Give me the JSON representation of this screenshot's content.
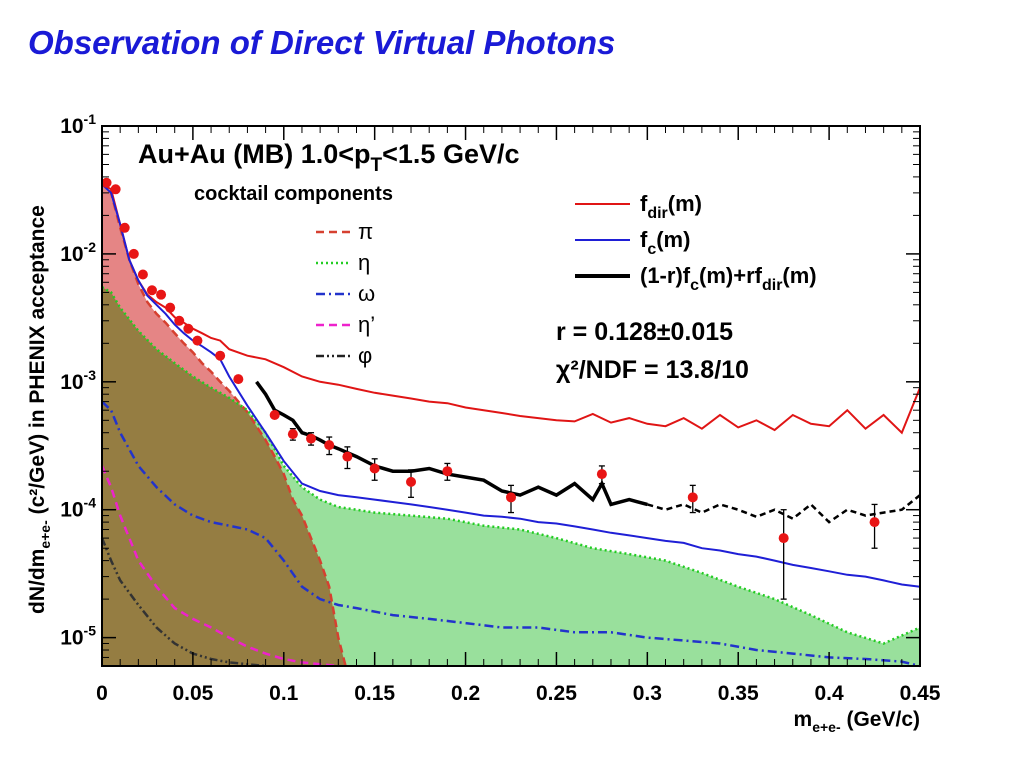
{
  "slide": {
    "title": "Observation of Direct Virtual Photons"
  },
  "chart_data": {
    "type": "line",
    "plot_title": "Au+Au (MB) 1.0<p",
    "plot_title_sub": "T",
    "plot_title_tail": "<1.5 GeV/c",
    "subtitle": "cocktail components",
    "xlabel_main": "m",
    "xlabel_sub": "e+e-",
    "xlabel_tail": " (GeV/c)",
    "ylabel_head": "dN/dm",
    "ylabel_sub": "e+e-",
    "ylabel_tail": " (c²/GeV) in PHENIX acceptance",
    "xlim": [
      0,
      0.45
    ],
    "ylim": [
      6e-06,
      0.1
    ],
    "log_y": true,
    "x_ticks": [
      "0",
      "0.05",
      "0.1",
      "0.15",
      "0.2",
      "0.25",
      "0.3",
      "0.35",
      "0.4",
      "0.45"
    ],
    "y_ticks": [
      {
        "base": "10",
        "exp": "-1",
        "value": 0.1
      },
      {
        "base": "10",
        "exp": "-2",
        "value": 0.01
      },
      {
        "base": "10",
        "exp": "-3",
        "value": 0.001
      },
      {
        "base": "10",
        "exp": "-4",
        "value": 0.0001
      },
      {
        "base": "10",
        "exp": "-5",
        "value": 1e-05
      }
    ],
    "fit_result": "r = 0.128±0.015",
    "chi2": "χ²/NDF = 13.8/10",
    "legend_right": [
      {
        "label": "f",
        "sub": "dir",
        "tail": "(m)",
        "color": "#e01515"
      },
      {
        "label": "f",
        "sub": "c",
        "tail": "(m)",
        "color": "#1f1fd6"
      },
      {
        "label": "(1-r)f",
        "sub": "c",
        "tail": "(m)+rf",
        "sub2": "dir",
        "tail2": "(m)",
        "color": "#000000"
      }
    ],
    "legend_components": [
      {
        "label": "π",
        "color": "#d64030",
        "dash": "dashed"
      },
      {
        "label": "η",
        "color": "#22cc22",
        "dash": "dotted"
      },
      {
        "label": "ω",
        "color": "#2233cc",
        "dash": "dashdot"
      },
      {
        "label": "η’",
        "color": "#ee22cc",
        "dash": "dashed"
      },
      {
        "label": "φ",
        "color": "#222222",
        "dash": "dashdotdot"
      }
    ],
    "series": [
      {
        "key": "f_dir",
        "color": "#e01515",
        "x": [
          0.0,
          0.005,
          0.01,
          0.015,
          0.02,
          0.025,
          0.03,
          0.035,
          0.04,
          0.045,
          0.05,
          0.055,
          0.06,
          0.065,
          0.07,
          0.08,
          0.09,
          0.1,
          0.11,
          0.12,
          0.13,
          0.14,
          0.15,
          0.16,
          0.17,
          0.18,
          0.19,
          0.2,
          0.21,
          0.22,
          0.23,
          0.24,
          0.25,
          0.26,
          0.27,
          0.28,
          0.29,
          0.3,
          0.31,
          0.32,
          0.33,
          0.34,
          0.35,
          0.36,
          0.37,
          0.38,
          0.39,
          0.4,
          0.41,
          0.42,
          0.43,
          0.44,
          0.45
        ],
        "y": [
          0.035,
          0.032,
          0.017,
          0.009,
          0.0062,
          0.0048,
          0.0042,
          0.0038,
          0.0032,
          0.0029,
          0.0026,
          0.0024,
          0.0022,
          0.0021,
          0.0018,
          0.0016,
          0.0015,
          0.0013,
          0.0011,
          0.001,
          0.00095,
          0.00088,
          0.00082,
          0.00078,
          0.00074,
          0.0007,
          0.00068,
          0.00063,
          0.0006,
          0.00057,
          0.00054,
          0.00052,
          0.0005,
          0.00049,
          0.00056,
          0.00048,
          0.00052,
          0.00047,
          0.00045,
          0.00052,
          0.00043,
          0.00055,
          0.00044,
          0.0005,
          0.00042,
          0.00055,
          0.00047,
          0.00045,
          0.0006,
          0.00043,
          0.00055,
          0.0004,
          0.0009
        ]
      },
      {
        "key": "f_c",
        "color": "#1f1fd6",
        "x": [
          0.0,
          0.005,
          0.01,
          0.015,
          0.02,
          0.025,
          0.03,
          0.035,
          0.04,
          0.045,
          0.05,
          0.055,
          0.06,
          0.065,
          0.07,
          0.08,
          0.09,
          0.1,
          0.11,
          0.12,
          0.13,
          0.14,
          0.15,
          0.16,
          0.17,
          0.18,
          0.19,
          0.2,
          0.21,
          0.22,
          0.23,
          0.24,
          0.25,
          0.26,
          0.27,
          0.28,
          0.29,
          0.3,
          0.31,
          0.32,
          0.33,
          0.34,
          0.35,
          0.36,
          0.37,
          0.38,
          0.39,
          0.4,
          0.41,
          0.42,
          0.43,
          0.44,
          0.45
        ],
        "y": [
          0.035,
          0.03,
          0.017,
          0.009,
          0.0062,
          0.0047,
          0.004,
          0.0034,
          0.0028,
          0.0024,
          0.0021,
          0.0019,
          0.0017,
          0.0015,
          0.0011,
          0.00065,
          0.0004,
          0.00024,
          0.00016,
          0.00014,
          0.00013,
          0.000125,
          0.00012,
          0.000115,
          0.00011,
          0.000105,
          0.0001,
          9.5e-05,
          9e-05,
          8.8e-05,
          8.5e-05,
          8e-05,
          7.8e-05,
          7.4e-05,
          7e-05,
          6.6e-05,
          6.3e-05,
          6e-05,
          5.7e-05,
          5.5e-05,
          5e-05,
          4.8e-05,
          4.5e-05,
          4.3e-05,
          4e-05,
          3.7e-05,
          3.5e-05,
          3.3e-05,
          3.1e-05,
          3e-05,
          2.8e-05,
          2.6e-05,
          2.5e-05
        ]
      },
      {
        "key": "combined",
        "color": "#000000",
        "x": [
          0.085,
          0.09,
          0.095,
          0.1,
          0.105,
          0.11,
          0.115,
          0.12,
          0.125,
          0.13,
          0.14,
          0.15,
          0.16,
          0.17,
          0.18,
          0.19,
          0.2,
          0.21,
          0.22,
          0.23,
          0.24,
          0.25,
          0.26,
          0.27,
          0.275,
          0.28,
          0.29,
          0.3
        ],
        "y": [
          0.001,
          0.0008,
          0.0006,
          0.00055,
          0.0005,
          0.0004,
          0.00038,
          0.00035,
          0.00032,
          0.0003,
          0.00026,
          0.00022,
          0.0002,
          0.0002,
          0.00021,
          0.00019,
          0.00018,
          0.00017,
          0.00014,
          0.00013,
          0.00015,
          0.00013,
          0.00016,
          0.00012,
          0.00016,
          0.00011,
          0.00012,
          0.00011
        ]
      },
      {
        "key": "combined_ext",
        "color": "#000000",
        "x": [
          0.3,
          0.31,
          0.32,
          0.33,
          0.34,
          0.35,
          0.36,
          0.37,
          0.38,
          0.39,
          0.4,
          0.41,
          0.42,
          0.43,
          0.44,
          0.45
        ],
        "y": [
          0.00011,
          0.0001,
          0.00011,
          9.5e-05,
          0.00011,
          0.0001,
          8.8e-05,
          0.0001,
          8.5e-05,
          0.00011,
          8e-05,
          0.0001,
          9e-05,
          9.5e-05,
          0.0001,
          0.00013
        ]
      }
    ],
    "components": [
      {
        "key": "pi",
        "color": "#d64030",
        "fill": "#e07070",
        "x": [
          0.0,
          0.005,
          0.01,
          0.015,
          0.02,
          0.025,
          0.03,
          0.035,
          0.04,
          0.045,
          0.05,
          0.055,
          0.06,
          0.065,
          0.07,
          0.075,
          0.08,
          0.085,
          0.09,
          0.095,
          0.1,
          0.105,
          0.11,
          0.115,
          0.12,
          0.125,
          0.13,
          0.134
        ],
        "y": [
          0.038,
          0.03,
          0.016,
          0.009,
          0.0058,
          0.0042,
          0.0034,
          0.0029,
          0.0024,
          0.002,
          0.0017,
          0.0014,
          0.0012,
          0.001,
          0.00085,
          0.0007,
          0.00058,
          0.00045,
          0.00035,
          0.00026,
          0.00019,
          0.00012,
          9e-05,
          6e-05,
          4e-05,
          2.5e-05,
          1e-05,
          6e-06
        ]
      },
      {
        "key": "eta",
        "color": "#22cc22",
        "fill": "#99e09c",
        "x": [
          0.0,
          0.005,
          0.01,
          0.02,
          0.03,
          0.04,
          0.05,
          0.06,
          0.07,
          0.08,
          0.09,
          0.1,
          0.11,
          0.12,
          0.13,
          0.14,
          0.15,
          0.17,
          0.19,
          0.21,
          0.23,
          0.25,
          0.27,
          0.29,
          0.31,
          0.33,
          0.35,
          0.37,
          0.39,
          0.41,
          0.43,
          0.45
        ],
        "y": [
          0.0055,
          0.005,
          0.0038,
          0.0025,
          0.0018,
          0.0014,
          0.0011,
          0.0009,
          0.00075,
          0.0006,
          0.0004,
          0.00022,
          0.00015,
          0.00012,
          0.000105,
          0.0001,
          9.5e-05,
          9e-05,
          8.5e-05,
          7.5e-05,
          7e-05,
          6e-05,
          5e-05,
          4.5e-05,
          4e-05,
          3.2e-05,
          2.5e-05,
          2e-05,
          1.5e-05,
          1.1e-05,
          9e-06,
          1.2e-05
        ]
      },
      {
        "key": "omega",
        "color": "#2233cc",
        "x": [
          0.0,
          0.005,
          0.01,
          0.02,
          0.03,
          0.04,
          0.05,
          0.06,
          0.07,
          0.08,
          0.09,
          0.1,
          0.11,
          0.12,
          0.13,
          0.14,
          0.16,
          0.18,
          0.2,
          0.22,
          0.24,
          0.26,
          0.28,
          0.3,
          0.32,
          0.34,
          0.36,
          0.38,
          0.4,
          0.42,
          0.44,
          0.45
        ],
        "y": [
          0.0007,
          0.0006,
          0.0004,
          0.00022,
          0.00015,
          0.00011,
          9e-05,
          8e-05,
          7.5e-05,
          7e-05,
          6e-05,
          4e-05,
          2.5e-05,
          2e-05,
          1.8e-05,
          1.7e-05,
          1.5e-05,
          1.4e-05,
          1.3e-05,
          1.2e-05,
          1.2e-05,
          1.1e-05,
          1.1e-05,
          1e-05,
          9.5e-06,
          9e-06,
          8e-06,
          7.5e-06,
          7e-06,
          6.8e-06,
          6.5e-06,
          6e-06
        ]
      },
      {
        "key": "eta_prime",
        "color": "#ee22cc",
        "x": [
          0.0,
          0.005,
          0.01,
          0.02,
          0.03,
          0.04,
          0.05,
          0.06,
          0.07,
          0.08,
          0.09,
          0.1,
          0.11,
          0.12,
          0.13
        ],
        "y": [
          0.00022,
          0.00015,
          9e-05,
          4e-05,
          2.5e-05,
          1.7e-05,
          1.4e-05,
          1.2e-05,
          1e-05,
          8.5e-06,
          7.5e-06,
          6.8e-06,
          6.4e-06,
          6.2e-06,
          6e-06
        ]
      },
      {
        "key": "phi",
        "color": "#333333",
        "x": [
          0.0,
          0.005,
          0.01,
          0.02,
          0.03,
          0.04,
          0.05,
          0.06,
          0.07,
          0.08,
          0.09
        ],
        "y": [
          6e-05,
          4e-05,
          2.8e-05,
          1.8e-05,
          1.2e-05,
          9e-06,
          7.5e-06,
          6.8e-06,
          6.4e-06,
          6.2e-06,
          6e-06
        ]
      }
    ],
    "data_points": {
      "color": "#e81515",
      "points": [
        {
          "x": 0.0025,
          "y": 0.036
        },
        {
          "x": 0.0075,
          "y": 0.032
        },
        {
          "x": 0.0125,
          "y": 0.016
        },
        {
          "x": 0.0175,
          "y": 0.01
        },
        {
          "x": 0.0225,
          "y": 0.0069
        },
        {
          "x": 0.0275,
          "y": 0.0052
        },
        {
          "x": 0.0325,
          "y": 0.0048
        },
        {
          "x": 0.0375,
          "y": 0.0038
        },
        {
          "x": 0.0425,
          "y": 0.003
        },
        {
          "x": 0.0475,
          "y": 0.0026
        },
        {
          "x": 0.0525,
          "y": 0.0021
        },
        {
          "x": 0.065,
          "y": 0.0016
        },
        {
          "x": 0.075,
          "y": 0.00105
        },
        {
          "x": 0.095,
          "y": 0.00055
        },
        {
          "x": 0.105,
          "y": 0.00039,
          "err": 4e-05
        },
        {
          "x": 0.115,
          "y": 0.00036,
          "err": 4e-05
        },
        {
          "x": 0.125,
          "y": 0.00032,
          "err": 5e-05
        },
        {
          "x": 0.135,
          "y": 0.00026,
          "err": 5e-05
        },
        {
          "x": 0.15,
          "y": 0.00021,
          "err": 4e-05
        },
        {
          "x": 0.17,
          "y": 0.000165,
          "err": 4e-05
        },
        {
          "x": 0.19,
          "y": 0.0002,
          "err": 3e-05
        },
        {
          "x": 0.225,
          "y": 0.000125,
          "err": 3e-05
        },
        {
          "x": 0.275,
          "y": 0.00019,
          "err": 3e-05
        },
        {
          "x": 0.325,
          "y": 0.000125,
          "err": 3e-05
        },
        {
          "x": 0.375,
          "y": 6e-05,
          "err": 4e-05
        },
        {
          "x": 0.425,
          "y": 8e-05,
          "err": 3e-05
        }
      ]
    }
  }
}
